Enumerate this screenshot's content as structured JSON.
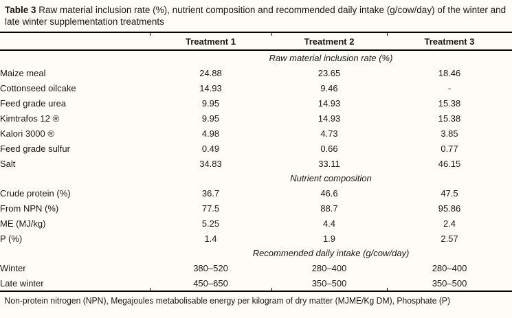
{
  "caption": {
    "label": "Table 3",
    "text": "Raw material inclusion rate (%), nutrient composition and recommended daily intake (g/cow/day) of the winter and late winter supplementation treatments"
  },
  "table": {
    "columns": [
      "Treatment 1",
      "Treatment 2",
      "Treatment 3"
    ],
    "sections": [
      {
        "title": "Raw material inclusion rate (%)",
        "rows": [
          {
            "label": "Maize meal",
            "values": [
              "24.88",
              "23.65",
              "18.46"
            ]
          },
          {
            "label": "Cottonseed oilcake",
            "values": [
              "14.93",
              "9.46",
              "-"
            ]
          },
          {
            "label": "Feed grade urea",
            "values": [
              "9.95",
              "14.93",
              "15.38"
            ]
          },
          {
            "label": "Kimtrafos 12 ®",
            "values": [
              "9.95",
              "14.93",
              "15.38"
            ]
          },
          {
            "label": "Kalori 3000 ®",
            "values": [
              "4.98",
              "4.73",
              "3.85"
            ]
          },
          {
            "label": "Feed grade sulfur",
            "values": [
              "0.49",
              "0.66",
              "0.77"
            ]
          },
          {
            "label": "Salt",
            "values": [
              "34.83",
              "33.11",
              "46.15"
            ]
          }
        ]
      },
      {
        "title": "Nutrient composition",
        "rows": [
          {
            "label": "Crude protein (%)",
            "values": [
              "36.7",
              "46.6",
              "47.5"
            ]
          },
          {
            "label": "From NPN (%)",
            "values": [
              "77.5",
              "88.7",
              "95.86"
            ]
          },
          {
            "label": "ME (MJ/kg)",
            "values": [
              "5.25",
              "4.4",
              "2.4"
            ]
          },
          {
            "label": "P (%)",
            "values": [
              "1.4",
              "1.9",
              "2.57"
            ]
          }
        ]
      },
      {
        "title": "Recommended daily intake (g/cow/day)",
        "rows": [
          {
            "label": "Winter",
            "values": [
              "380–520",
              "280–400",
              "280–400"
            ]
          },
          {
            "label": "Late winter",
            "values": [
              "450–650",
              "350–500",
              "350–500"
            ]
          }
        ]
      }
    ]
  },
  "footnote": "Non-protein nitrogen (NPN), Megajoules metabolisable energy per kilogram of dry matter (MJME/Kg DM), Phosphate (P)"
}
